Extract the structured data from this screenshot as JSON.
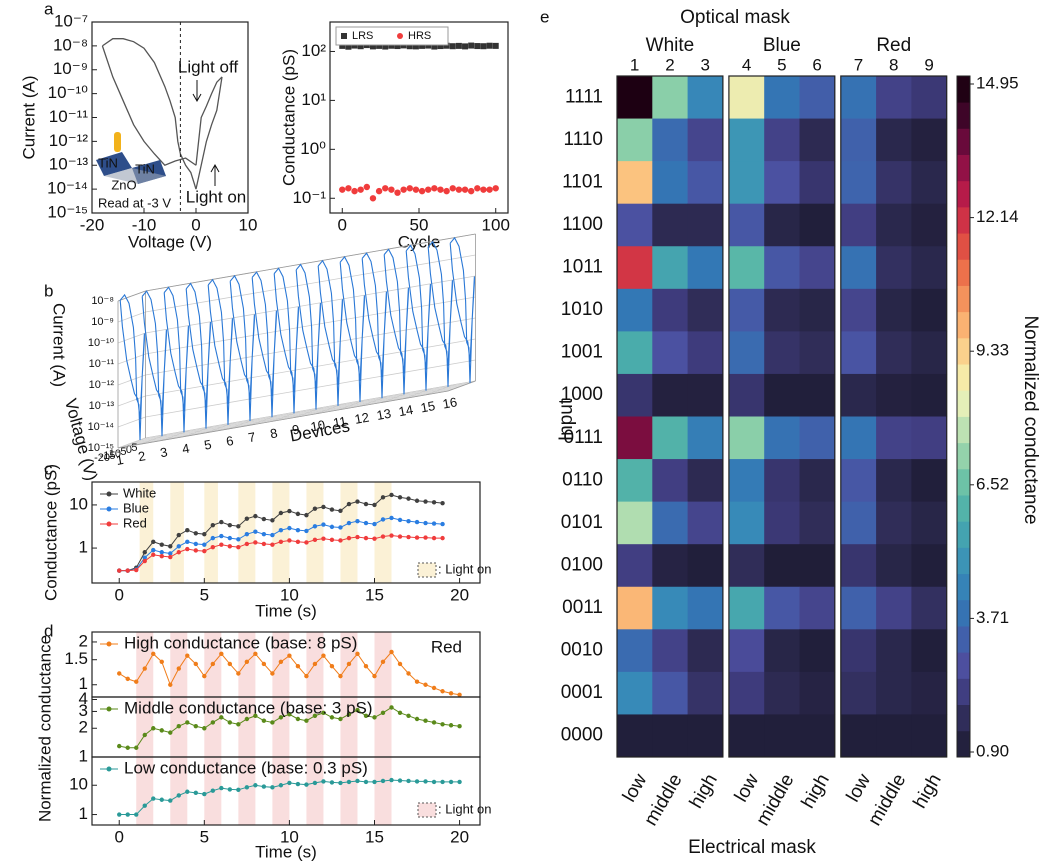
{
  "chart_data": [
    {
      "type": "line",
      "panel": "a",
      "xlabel": "Voltage (V)",
      "ylabel": "Current (A)",
      "log_y": true,
      "xlim": [
        -20,
        10
      ],
      "ylim": [
        1e-15,
        1e-07
      ],
      "xticks": [
        -20,
        -10,
        0,
        10
      ],
      "yticks": [
        {
          "value": 1e-15,
          "label": "10⁻¹⁵"
        },
        {
          "value": 1e-14,
          "label": "10⁻¹⁴"
        },
        {
          "value": 1e-13,
          "label": "10⁻¹³"
        },
        {
          "value": 1e-12,
          "label": "10⁻¹²"
        },
        {
          "value": 1e-11,
          "label": "10⁻¹¹"
        },
        {
          "value": 1e-10,
          "label": "10⁻¹⁰"
        },
        {
          "value": 1e-09,
          "label": "10⁻⁹"
        },
        {
          "value": 1e-08,
          "label": "10⁻⁸"
        },
        {
          "value": 1e-07,
          "label": "10⁻⁷"
        }
      ],
      "vline": -3,
      "annotations": [
        "Light off",
        "Light on",
        "Read at -3 V"
      ],
      "inset_labels": [
        "TiN",
        "ZnO",
        "TiN"
      ],
      "series": [
        {
          "color": "#555555",
          "x": [
            -18,
            -16,
            -14,
            -12,
            -10,
            -8,
            -6,
            -5,
            -4,
            -3.5,
            -3,
            -2,
            -1,
            0
          ],
          "values": [
            1e-08,
            2e-08,
            2e-08,
            1.5e-08,
            8e-09,
            2e-09,
            2e-10,
            5e-11,
            1e-11,
            1e-12,
            3e-13,
            1e-13,
            5e-14,
            1e-14
          ]
        },
        {
          "color": "#555555",
          "x": [
            0,
            -2,
            -4,
            -6,
            -8,
            -10,
            -12,
            -14,
            -16,
            -18
          ],
          "values": [
            1e-13,
            2e-13,
            1.5e-13,
            1e-13,
            3e-13,
            1e-12,
            5e-12,
            5e-11,
            5e-10,
            1e-08
          ]
        },
        {
          "color": "#555555",
          "x": [
            0,
            1,
            2,
            3,
            4,
            5
          ],
          "values": [
            1e-13,
            1e-11,
            3e-11,
            1e-10,
            3e-10,
            5e-10
          ]
        },
        {
          "color": "#555555",
          "x": [
            5,
            4,
            3,
            2,
            1,
            0
          ],
          "values": [
            5e-10,
            2e-11,
            5e-12,
            1e-12,
            1e-13,
            1e-14
          ]
        }
      ]
    },
    {
      "type": "scatter",
      "xlabel": "Cycle",
      "ylabel": "Conductance (pS)",
      "log_y": true,
      "xlim": [
        -8,
        108
      ],
      "ylim": [
        0.05,
        400
      ],
      "xticks": [
        0,
        50,
        100
      ],
      "yticks": [
        {
          "value": 0.1,
          "label": "10⁻¹"
        },
        {
          "value": 1,
          "label": "10⁰"
        },
        {
          "value": 10,
          "label": "10¹"
        },
        {
          "value": 100,
          "label": "10²"
        }
      ],
      "x": [
        0,
        4,
        8,
        12,
        16,
        20,
        24,
        28,
        32,
        36,
        40,
        44,
        48,
        52,
        56,
        60,
        64,
        68,
        72,
        76,
        80,
        84,
        88,
        92,
        96,
        100
      ],
      "series": [
        {
          "name": "LRS",
          "color": "#333333",
          "marker": "square",
          "values": [
            130,
            125,
            132,
            128,
            135,
            127,
            130,
            126,
            131,
            129,
            133,
            128,
            127,
            130,
            132,
            126,
            129,
            131,
            128,
            130,
            127,
            132,
            129,
            128,
            131,
            130
          ]
        },
        {
          "name": "HRS",
          "color": "#f03c3c",
          "marker": "circle",
          "values": [
            0.15,
            0.16,
            0.14,
            0.15,
            0.17,
            0.1,
            0.14,
            0.16,
            0.15,
            0.13,
            0.15,
            0.16,
            0.15,
            0.14,
            0.15,
            0.16,
            0.15,
            0.14,
            0.16,
            0.15,
            0.15,
            0.14,
            0.16,
            0.15,
            0.15,
            0.16
          ]
        }
      ]
    },
    {
      "type": "line3d",
      "panel": "b",
      "xlabel": "Voltage (V)",
      "ylabel": "Current (A)",
      "dlabel": "Devices",
      "devices": [
        1,
        2,
        3,
        4,
        5,
        6,
        7,
        8,
        9,
        10,
        11,
        12,
        13,
        14,
        15,
        16
      ],
      "xlim": [
        -20,
        5
      ],
      "xticks": [
        -20,
        -15,
        -10,
        -5,
        0,
        5
      ],
      "zlim": [
        1e-15,
        1e-08
      ],
      "zticks": [
        {
          "value": 1e-08,
          "label": "10⁻⁸"
        },
        {
          "value": 1e-09,
          "label": "10⁻⁹"
        },
        {
          "value": 1e-10,
          "label": "10⁻¹⁰"
        },
        {
          "value": 1e-11,
          "label": "10⁻¹¹"
        },
        {
          "value": 1e-12,
          "label": "10⁻¹²"
        },
        {
          "value": 1e-13,
          "label": "10⁻¹³"
        },
        {
          "value": 1e-14,
          "label": "10⁻¹⁴"
        },
        {
          "value": 1e-15,
          "label": "10⁻¹⁵"
        }
      ],
      "color": "#2a78d6",
      "x": [
        -18,
        -14,
        -10,
        -6,
        -4,
        -3,
        -1,
        0,
        2,
        4,
        4,
        2,
        0,
        -2,
        -5,
        -8,
        -12,
        -16,
        -18
      ],
      "values": [
        1e-08,
        1.5e-08,
        5e-09,
        3e-10,
        1e-11,
        1e-13,
        5e-14,
        1e-15,
        1e-12,
        1e-10,
        5e-11,
        1e-12,
        1e-14,
        1e-13,
        2e-13,
        1e-12,
        1e-11,
        5e-10,
        1e-08
      ]
    },
    {
      "type": "line",
      "panel": "c",
      "xlabel": "Time (s)",
      "ylabel": "Conductance (pS)",
      "log_y": true,
      "xlim": [
        -1.6,
        21.2
      ],
      "ylim": [
        0.155,
        34
      ],
      "xticks": [
        0,
        5,
        10,
        15,
        20
      ],
      "yticks": [
        1,
        10
      ],
      "light_on": [
        [
          1.2,
          2
        ],
        [
          3,
          3.8
        ],
        [
          5,
          5.8
        ],
        [
          7,
          8
        ],
        [
          9,
          10
        ],
        [
          11,
          12
        ],
        [
          13,
          14
        ],
        [
          15,
          16
        ]
      ],
      "light_color": "#fbf1d6",
      "light_legend": ": Light on",
      "x": [
        0,
        0.5,
        1,
        1.5,
        2,
        2.5,
        3,
        3.5,
        4,
        4.5,
        5,
        5.5,
        6,
        6.5,
        7,
        7.5,
        8,
        8.5,
        9,
        9.5,
        10,
        10.5,
        11,
        11.5,
        12,
        12.5,
        13,
        13.5,
        14,
        14.5,
        15,
        15.5,
        16,
        16.5,
        17,
        17.5,
        18,
        18.5,
        19
      ],
      "series": [
        {
          "name": "White",
          "color": "#404040",
          "values": [
            0.3,
            0.3,
            0.35,
            0.8,
            1.4,
            1.2,
            1.1,
            2.0,
            2.6,
            2.2,
            2.1,
            3.4,
            4.0,
            3.4,
            3.2,
            4.8,
            5.5,
            4.7,
            4.4,
            6.5,
            7.2,
            6.2,
            5.8,
            8.2,
            9.0,
            7.8,
            7.3,
            10.5,
            12,
            10.5,
            10,
            15,
            17,
            15,
            14,
            12.5,
            12,
            11.5,
            11
          ]
        },
        {
          "name": "Blue",
          "color": "#2a7de1",
          "values": [
            0.3,
            0.3,
            0.32,
            0.6,
            0.9,
            0.8,
            0.75,
            1.1,
            1.4,
            1.25,
            1.2,
            1.7,
            1.9,
            1.7,
            1.6,
            2.1,
            2.4,
            2.1,
            2.0,
            2.6,
            2.9,
            2.6,
            2.5,
            3.2,
            3.5,
            3.1,
            3.0,
            3.8,
            4.2,
            3.8,
            3.6,
            4.6,
            5.0,
            4.5,
            4.2,
            4.0,
            3.8,
            3.7,
            3.6
          ]
        },
        {
          "name": "Red",
          "color": "#f03c3c",
          "values": [
            0.3,
            0.3,
            0.31,
            0.5,
            0.7,
            0.65,
            0.62,
            0.8,
            0.95,
            0.88,
            0.85,
            1.05,
            1.2,
            1.1,
            1.05,
            1.25,
            1.35,
            1.25,
            1.2,
            1.4,
            1.5,
            1.4,
            1.35,
            1.55,
            1.65,
            1.55,
            1.5,
            1.7,
            1.8,
            1.7,
            1.65,
            1.85,
            1.95,
            1.85,
            1.8,
            1.75,
            1.75,
            1.7,
            1.7
          ]
        }
      ]
    },
    {
      "type": "line",
      "panel": "d",
      "xlabel": "Time (s)",
      "ylabel": "Normalized conductance",
      "log_y": true,
      "annotation": "Red",
      "xlim": [
        -1.6,
        21.2
      ],
      "xticks": [
        0,
        5,
        10,
        15,
        20
      ],
      "light_on": [
        [
          1,
          2
        ],
        [
          3,
          4
        ],
        [
          5,
          6
        ],
        [
          7,
          8
        ],
        [
          9,
          10
        ],
        [
          11,
          12
        ],
        [
          13,
          14
        ],
        [
          15,
          16
        ]
      ],
      "light_color": "#f9dede",
      "light_legend": ": Light on",
      "x": [
        0,
        0.5,
        1,
        1.5,
        2,
        2.5,
        3,
        3.5,
        4,
        4.5,
        5,
        5.5,
        6,
        6.5,
        7,
        7.5,
        8,
        8.5,
        9,
        9.5,
        10,
        10.5,
        11,
        11.5,
        12,
        12.5,
        13,
        13.5,
        14,
        14.5,
        15,
        15.5,
        16,
        16.5,
        17,
        17.5,
        18,
        18.5,
        19,
        19.5,
        20
      ],
      "subplots": [
        {
          "label": "High conductance (base: 8 pS)",
          "color": "#f07d1a",
          "ylim": [
            0.82,
            2.35
          ],
          "yticks": [
            1,
            1.5,
            2
          ],
          "values": [
            1.2,
            1.1,
            1.05,
            1.3,
            1.65,
            1.45,
            1.0,
            1.3,
            1.6,
            1.4,
            1.15,
            1.4,
            1.65,
            1.4,
            1.2,
            1.45,
            1.65,
            1.4,
            1.2,
            1.45,
            1.6,
            1.35,
            1.15,
            1.4,
            1.6,
            1.35,
            1.15,
            1.4,
            1.65,
            1.35,
            1.15,
            1.45,
            1.7,
            1.4,
            1.2,
            1.05,
            1.0,
            0.95,
            0.9,
            0.87,
            0.85
          ]
        },
        {
          "label": "Middle conductance (base: 3 pS)",
          "color": "#5a8a1a",
          "ylim": [
            1,
            4.25
          ],
          "yticks": [
            1,
            2,
            3,
            4
          ],
          "values": [
            1.3,
            1.25,
            1.25,
            1.7,
            2.0,
            1.9,
            1.8,
            2.1,
            2.3,
            2.1,
            2.0,
            2.3,
            2.6,
            2.3,
            2.2,
            2.5,
            2.7,
            2.4,
            2.3,
            2.6,
            2.8,
            2.5,
            2.4,
            2.7,
            2.9,
            2.6,
            2.5,
            2.8,
            3.1,
            2.7,
            2.6,
            2.9,
            3.3,
            2.9,
            2.7,
            2.5,
            2.4,
            2.3,
            2.2,
            2.15,
            2.1
          ]
        },
        {
          "label": "Low conductance (base: 0.3 pS)",
          "color": "#2a9a98",
          "ylim": [
            0.44,
            92
          ],
          "yticks": [
            1,
            10
          ],
          "values": [
            1.0,
            1.0,
            1.0,
            2,
            3.5,
            3.2,
            3.0,
            4.5,
            6,
            5.5,
            5.0,
            6.5,
            8,
            7.2,
            7,
            8.5,
            10,
            9,
            8.5,
            10,
            12,
            11,
            10.5,
            12,
            13.5,
            12.5,
            12,
            13,
            14,
            13,
            13,
            14,
            15,
            14.5,
            14,
            13.5,
            13.5,
            13,
            13,
            13,
            13
          ]
        }
      ]
    },
    {
      "type": "heatmap",
      "panel": "e",
      "title": "Optical mask",
      "xlabel": "Electrical mask",
      "ylabel": "Input",
      "clabel": "Normalized conductance",
      "groups": [
        "White",
        "Blue",
        "Red"
      ],
      "column_numbers": [
        1,
        2,
        3,
        4,
        5,
        6,
        7,
        8,
        9
      ],
      "columns": [
        "low",
        "middle",
        "high",
        "low",
        "middle",
        "high",
        "low",
        "middle",
        "high"
      ],
      "rows": [
        "1111",
        "1110",
        "1101",
        "1100",
        "1011",
        "1010",
        "1001",
        "1000",
        "0111",
        "0110",
        "0101",
        "0100",
        "0011",
        "0010",
        "0001",
        "0000"
      ],
      "values": [
        [
          14.9,
          7.0,
          4.5,
          8.5,
          3.9,
          3.2,
          3.8,
          2.3,
          2.0
        ],
        [
          7.0,
          3.6,
          2.4,
          5.0,
          2.3,
          1.5,
          3.3,
          1.4,
          1.1
        ],
        [
          9.6,
          3.9,
          3.0,
          5.0,
          2.8,
          1.9,
          3.4,
          1.8,
          1.4
        ],
        [
          2.8,
          1.5,
          1.5,
          3.0,
          1.3,
          1.0,
          2.2,
          1.4,
          1.1
        ],
        [
          12.0,
          5.5,
          4.0,
          6.2,
          3.0,
          2.4,
          3.8,
          1.7,
          1.4
        ],
        [
          4.0,
          2.1,
          1.6,
          3.1,
          1.5,
          1.3,
          2.4,
          1.3,
          1.0
        ],
        [
          5.8,
          2.8,
          2.1,
          3.6,
          1.8,
          1.6,
          2.9,
          1.6,
          1.3
        ],
        [
          1.9,
          1.1,
          1.1,
          1.9,
          1.0,
          1.0,
          1.4,
          1.1,
          1.0
        ],
        [
          13.5,
          6.0,
          4.2,
          7.0,
          3.8,
          3.3,
          3.9,
          2.3,
          2.2
        ],
        [
          6.0,
          2.2,
          1.5,
          4.1,
          1.9,
          1.4,
          3.0,
          1.4,
          1.0
        ],
        [
          7.5,
          3.6,
          2.4,
          4.6,
          2.0,
          1.6,
          3.3,
          1.6,
          1.3
        ],
        [
          2.2,
          1.2,
          1.0,
          1.6,
          0.95,
          0.95,
          1.9,
          1.3,
          1.0
        ],
        [
          9.8,
          4.6,
          3.9,
          5.6,
          3.0,
          2.4,
          3.3,
          2.3,
          1.7
        ],
        [
          3.6,
          2.3,
          1.5,
          2.6,
          1.3,
          1.0,
          1.9,
          1.4,
          1.0
        ],
        [
          4.6,
          3.0,
          1.8,
          2.1,
          1.5,
          1.2,
          1.7,
          1.4,
          1.2
        ],
        [
          1.0,
          1.0,
          1.0,
          1.0,
          1.0,
          1.0,
          1.0,
          1.0,
          1.0
        ]
      ],
      "clim": [
        0.9,
        14.95
      ],
      "cticks": [
        {
          "value": 0.9,
          "label": "0.90"
        },
        3.71,
        6.52,
        9.33,
        12.14,
        14.95
      ],
      "colormap": [
        "#1f1d36",
        "#2d2a52",
        "#3f3c7e",
        "#4d4fa0",
        "#3f62ac",
        "#3377b5",
        "#3789b8",
        "#3f9bb4",
        "#4aacab",
        "#60bda6",
        "#8bcfa9",
        "#b9e0b2",
        "#e4efb8",
        "#f8e9a6",
        "#fbcb86",
        "#f9a86a",
        "#f18453",
        "#e75f44",
        "#d63b44",
        "#bf1d4a",
        "#971247",
        "#6a0a3b",
        "#3a0526",
        "#1a0010"
      ]
    }
  ]
}
